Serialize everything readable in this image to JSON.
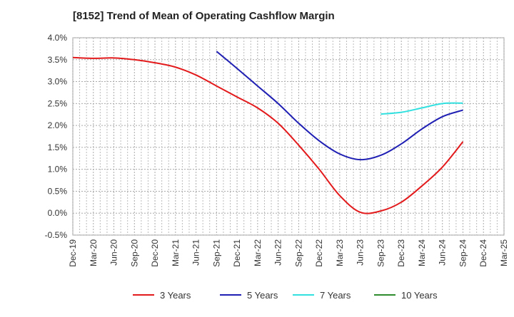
{
  "chart_data": {
    "type": "line",
    "title": "[8152]  Trend of Mean of Operating Cashflow Margin",
    "xlabel": "",
    "ylabel": "",
    "x_tick_labels": [
      "Dec-19",
      "Mar-20",
      "Jun-20",
      "Sep-20",
      "Dec-20",
      "Mar-21",
      "Jun-21",
      "Sep-21",
      "Dec-21",
      "Mar-22",
      "Jun-22",
      "Sep-22",
      "Dec-22",
      "Mar-23",
      "Jun-23",
      "Sep-23",
      "Dec-23",
      "Mar-24",
      "Jun-24",
      "Sep-24",
      "Dec-24",
      "Mar-25"
    ],
    "y_tick_labels": [
      "4.0%",
      "3.5%",
      "3.0%",
      "2.5%",
      "2.0%",
      "1.5%",
      "1.0%",
      "0.5%",
      "0.0%",
      "-0.5%"
    ],
    "ylim": [
      -0.5,
      4.0
    ],
    "y_unit": "%",
    "grid": true,
    "legend_position": "bottom",
    "series": [
      {
        "name": "3 Years",
        "color": "#e31a1c",
        "x": [
          "Dec-19",
          "Mar-20",
          "Jun-20",
          "Sep-20",
          "Dec-20",
          "Mar-21",
          "Jun-21",
          "Sep-21",
          "Dec-21",
          "Mar-22",
          "Jun-22",
          "Sep-22",
          "Dec-22",
          "Mar-23",
          "Jun-23",
          "Sep-23",
          "Dec-23",
          "Mar-24",
          "Jun-24",
          "Sep-24"
        ],
        "values": [
          3.55,
          3.53,
          3.54,
          3.5,
          3.43,
          3.33,
          3.15,
          2.9,
          2.65,
          2.4,
          2.05,
          1.55,
          1.0,
          0.4,
          0.02,
          0.05,
          0.25,
          0.62,
          1.05,
          1.63
        ]
      },
      {
        "name": "5 Years",
        "color": "#1f1fb4",
        "x": [
          "Sep-21",
          "Dec-21",
          "Mar-22",
          "Jun-22",
          "Sep-22",
          "Dec-22",
          "Mar-23",
          "Jun-23",
          "Sep-23",
          "Dec-23",
          "Mar-24",
          "Jun-24",
          "Sep-24"
        ],
        "values": [
          3.69,
          3.3,
          2.9,
          2.5,
          2.05,
          1.65,
          1.35,
          1.22,
          1.32,
          1.58,
          1.92,
          2.2,
          2.35
        ]
      },
      {
        "name": "7 Years",
        "color": "#33e0e0",
        "x": [
          "Sep-23",
          "Dec-23",
          "Mar-24",
          "Jun-24",
          "Sep-24"
        ],
        "values": [
          2.26,
          2.3,
          2.4,
          2.5,
          2.51
        ]
      },
      {
        "name": "10 Years",
        "color": "#2e8b2e",
        "x": [],
        "values": []
      }
    ]
  }
}
